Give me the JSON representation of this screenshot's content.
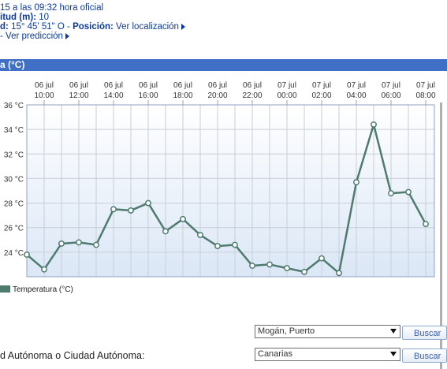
{
  "info": {
    "line1": "15 a las 09:32 hora oficial",
    "line2_label": "itud (m):",
    "line2_value": "10",
    "line3_label": "d:",
    "line3_value": "15° 45' 51\" O -",
    "line3_pos_label": "Posición:",
    "line3_pos_link": "Ver localización",
    "line4_prefix": "-",
    "line4_link": "Ver predicción"
  },
  "section": {
    "title": "a (°C)"
  },
  "legend": {
    "label": "Temperatura (°C)",
    "color": "#4f7b6e"
  },
  "form": {
    "location_select": "Mogán, Puerto",
    "region_label": "d Autónoma o Ciudad Autónoma:",
    "region_select": "Canarias",
    "search_button": "Buscar"
  },
  "chart_data": {
    "type": "line",
    "title": "",
    "xlabel": "",
    "ylabel": "",
    "ylim": [
      22,
      36
    ],
    "y_ticks": [
      "24 °C",
      "26 °C",
      "28 °C",
      "30 °C",
      "32 °C",
      "34 °C",
      "36 °C"
    ],
    "x_tick_labels": [
      [
        "06 jul",
        "10:00"
      ],
      [
        "06 jul",
        "12:00"
      ],
      [
        "06 jul",
        "14:00"
      ],
      [
        "06 jul",
        "16:00"
      ],
      [
        "06 jul",
        "18:00"
      ],
      [
        "06 jul",
        "20:00"
      ],
      [
        "06 jul",
        "22:00"
      ],
      [
        "07 jul",
        "00:00"
      ],
      [
        "07 jul",
        "02:00"
      ],
      [
        "07 jul",
        "04:00"
      ],
      [
        "07 jul",
        "06:00"
      ],
      [
        "07 jul",
        "08:00"
      ]
    ],
    "x_hours": [
      9,
      10,
      11,
      12,
      13,
      14,
      15,
      16,
      17,
      18,
      19,
      20,
      21,
      22,
      23,
      24,
      25,
      26,
      27,
      28,
      29,
      30,
      31,
      32
    ],
    "series": [
      {
        "name": "Temperatura (°C)",
        "color": "#4f7b6e",
        "values": [
          23.8,
          22.6,
          24.7,
          24.8,
          24.6,
          27.5,
          27.4,
          28.0,
          25.7,
          26.7,
          25.4,
          24.5,
          24.6,
          22.9,
          23.0,
          22.7,
          22.4,
          23.5,
          22.3,
          29.7,
          34.4,
          28.8,
          28.9,
          26.3
        ]
      }
    ],
    "grid": true,
    "legend_position": "bottom-left"
  }
}
